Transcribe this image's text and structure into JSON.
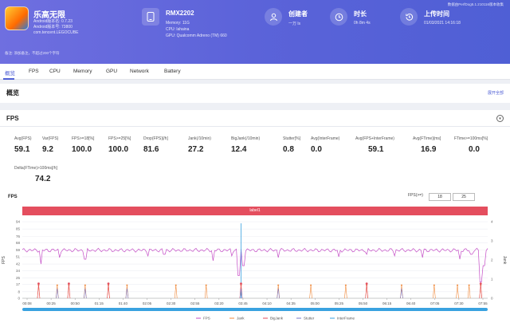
{
  "app": {
    "name": "乐高无限",
    "lines": [
      "Android版本名: 0.7.23",
      "Android版本号: 73800",
      "com.tencent.LEGOCUBE"
    ]
  },
  "device": {
    "title": "RMX2202",
    "lines": [
      "Memory: 11G",
      "CPU: lahaina",
      "GPU: Qualcomm Adreno (TM) 660"
    ]
  },
  "creator": {
    "title": "创建者",
    "sub": "一万 ls"
  },
  "duration": {
    "title": "时长",
    "sub": "0h 8m 4s"
  },
  "upload": {
    "title": "上传时间",
    "sub": "01/03/2021 14:16:18"
  },
  "header_note": "数据由PerfDog5.1.210116版本收集",
  "remark": "备注: 添加备注，不超过200个字符",
  "tabs": [
    "概览",
    "FPS",
    "CPU",
    "Memory",
    "GPU",
    "Network",
    "Battery"
  ],
  "overview": {
    "title": "概览",
    "link": "展开全部"
  },
  "fps_section": {
    "title": "FPS"
  },
  "metrics": [
    {
      "label": "Avg(FPS)",
      "value": "59.1"
    },
    {
      "label": "Var(FPS)",
      "value": "9.2"
    },
    {
      "label": "FPS>=18[%]",
      "value": "100.0"
    },
    {
      "label": "FPS>=25[%]",
      "value": "100.0"
    },
    {
      "label": "Drop(FPS)[/h]",
      "value": "81.6"
    },
    {
      "label": "Jank(/10min)",
      "value": "27.2"
    },
    {
      "label": "BigJank(/10min)",
      "value": "12.4"
    },
    {
      "label": "Stutter[%]",
      "value": "0.8"
    },
    {
      "label": "Avg(InterFrame)",
      "value": "0.0"
    },
    {
      "label": "Avg(FPS+InterFrame)",
      "value": "59.1"
    },
    {
      "label": "Avg(FTime)[ms]",
      "value": "16.9"
    },
    {
      "label": "FTime>=100ms[%]",
      "value": "0.0"
    },
    {
      "label": "Delta(FTime)>100ms[/h]",
      "value": "74.2"
    }
  ],
  "chart_header": {
    "label": "FPS",
    "fps_gt": "FPS(>=)",
    "input1": "18",
    "input2": "25",
    "band_label": "label1"
  },
  "chart_data": {
    "type": "line",
    "title": "FPS",
    "ylabel_left": "FPS",
    "ylabel_right": "Jank",
    "y_ticks": [
      0,
      8,
      17,
      25,
      34,
      42,
      51,
      59,
      68,
      76,
      85,
      94
    ],
    "right_ticks": [
      0,
      1,
      2,
      3,
      4
    ],
    "x_ticks": [
      "00:08",
      "00:25",
      "00:50",
      "01:15",
      "01:40",
      "02:05",
      "02:30",
      "02:55",
      "03:20",
      "03:45",
      "04:10",
      "04:35",
      "05:00",
      "05:25",
      "05:50",
      "06:15",
      "06:40",
      "07:05",
      "07:30",
      "07:55"
    ],
    "ylim": [
      0,
      94
    ],
    "series": [
      {
        "name": "FPS",
        "color": "#c44dc6",
        "baseline": 59,
        "dips": [
          [
            0.04,
            42
          ],
          [
            0.08,
            50
          ],
          [
            0.135,
            48
          ],
          [
            0.27,
            52
          ],
          [
            0.305,
            54
          ],
          [
            0.41,
            46
          ],
          [
            0.45,
            52
          ],
          [
            0.465,
            28
          ],
          [
            0.475,
            40
          ],
          [
            0.55,
            50
          ],
          [
            0.68,
            51
          ],
          [
            0.74,
            54
          ],
          [
            0.8,
            52
          ],
          [
            0.86,
            50
          ],
          [
            0.94,
            48
          ],
          [
            0.965,
            54
          ],
          [
            0.985,
            20
          ],
          [
            0.992,
            40
          ]
        ]
      },
      {
        "name": "Jank",
        "color": "#f08a3c",
        "events": [
          0.035,
          0.075,
          0.1,
          0.135,
          0.185,
          0.225,
          0.33,
          0.395,
          0.47,
          0.55,
          0.62,
          0.695,
          0.74,
          0.815,
          0.885,
          0.935,
          0.96,
          0.985
        ]
      },
      {
        "name": "BigJank",
        "color": "#e44e5e",
        "events": [
          0.035,
          0.1,
          0.185,
          0.47,
          0.74,
          0.985
        ]
      },
      {
        "name": "Stutter",
        "color": "#7a7ac8",
        "events": [
          0.075,
          0.135,
          0.225,
          0.47,
          0.55,
          0.815
        ]
      },
      {
        "name": "InterFrame",
        "color": "#3aa2e0",
        "events": []
      }
    ],
    "spike": {
      "x": 0.47,
      "y": 92,
      "color": "#3aa2e0"
    },
    "legend": [
      "FPS",
      "Jank",
      "BigJank",
      "Stutter",
      "InterFrame"
    ]
  }
}
